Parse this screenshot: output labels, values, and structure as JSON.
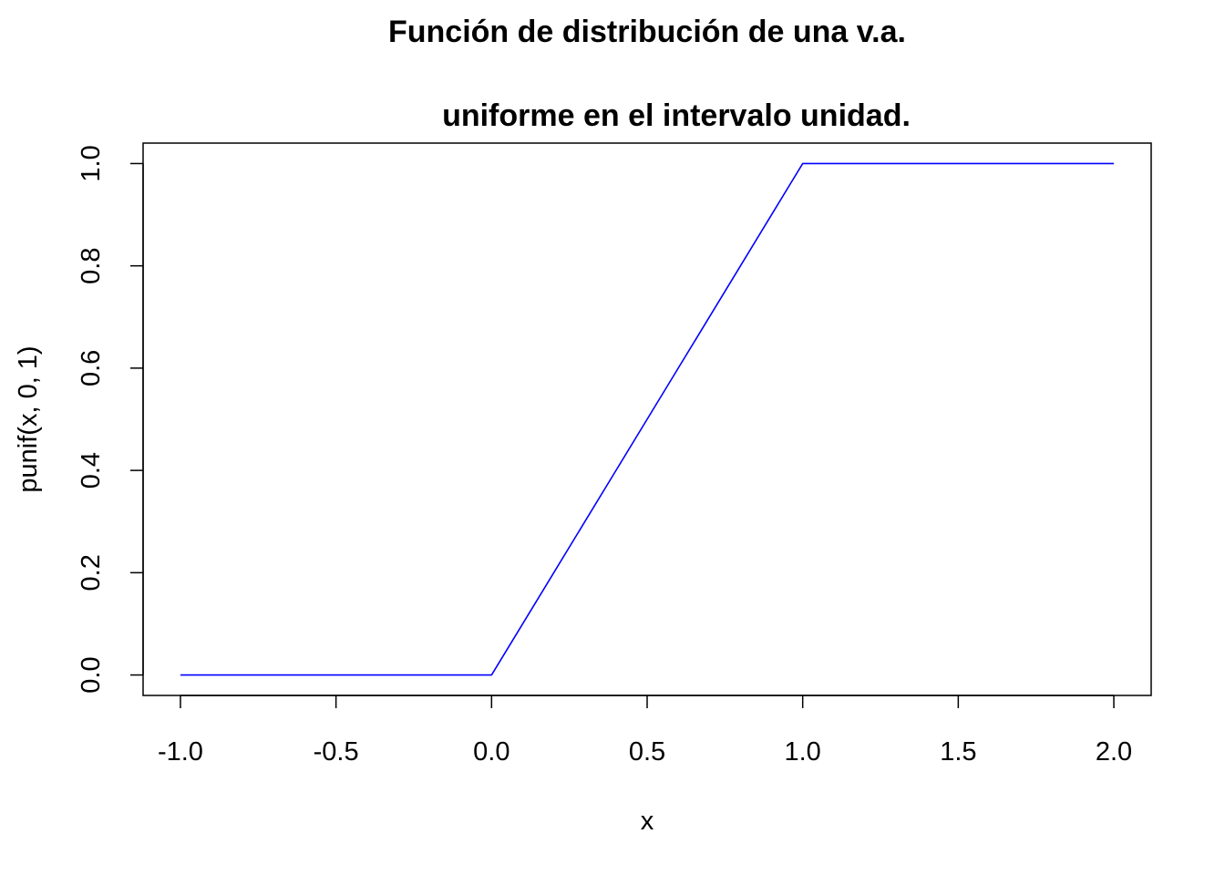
{
  "chart_data": {
    "type": "line",
    "title_line1": "Función de distribución de una v.a.",
    "title_line2": "uniforme en el intervalo unidad.",
    "xlabel": "x",
    "ylabel": "punif(x, 0, 1)",
    "xlim": [
      -1.12,
      2.12
    ],
    "ylim": [
      -0.04,
      1.04
    ],
    "x_ticks": [
      -1.0,
      -0.5,
      0.0,
      0.5,
      1.0,
      1.5,
      2.0
    ],
    "x_tick_labels": [
      "-1.0",
      "-0.5",
      "0.0",
      "0.5",
      "1.0",
      "1.5",
      "2.0"
    ],
    "y_ticks": [
      0.0,
      0.2,
      0.4,
      0.6,
      0.8,
      1.0
    ],
    "y_tick_labels": [
      "0.0",
      "0.2",
      "0.4",
      "0.6",
      "0.8",
      "1.0"
    ],
    "grid": false,
    "series": [
      {
        "color": "#0000ff",
        "x": [
          -1.0,
          0.0,
          0.02,
          0.1,
          0.2,
          0.3,
          0.4,
          0.5,
          0.6,
          0.7,
          0.8,
          0.9,
          0.96,
          1.0,
          1.02,
          2.0
        ],
        "y": [
          0.0,
          0.0,
          0.02,
          0.1,
          0.2,
          0.3,
          0.4,
          0.5,
          0.6,
          0.7,
          0.8,
          0.9,
          0.96,
          1.0,
          1.0,
          1.0
        ]
      }
    ]
  }
}
